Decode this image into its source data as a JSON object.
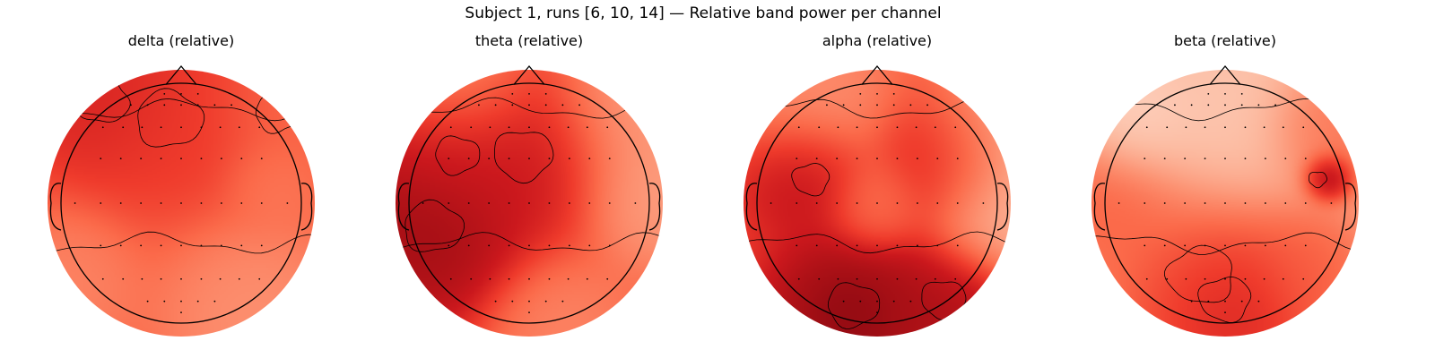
{
  "figure": {
    "title": "Subject 1, runs [6, 10, 14] — Relative band power per channel"
  },
  "chart_data": [
    {
      "type": "heatmap",
      "kind": "topomap",
      "title": "delta (relative)",
      "colormap": "Reds",
      "base_level": 0.55,
      "hotspots": [
        {
          "x": -0.65,
          "y": 0.85,
          "w": 0.35,
          "v": 0.75
        },
        {
          "x": -0.1,
          "y": 0.7,
          "w": 0.45,
          "v": 0.65
        },
        {
          "x": 0.8,
          "y": 0.75,
          "w": 0.3,
          "v": 0.5
        },
        {
          "x": 0.55,
          "y": -0.85,
          "w": 0.4,
          "v": 0.35
        },
        {
          "x": -0.85,
          "y": -0.6,
          "w": 0.3,
          "v": 0.4
        },
        {
          "x": 0.7,
          "y": 0.15,
          "w": 0.2,
          "v": 0.45
        }
      ]
    },
    {
      "type": "heatmap",
      "kind": "topomap",
      "title": "theta (relative)",
      "colormap": "Reds",
      "base_level": 0.55,
      "hotspots": [
        {
          "x": -0.8,
          "y": -0.2,
          "w": 0.4,
          "v": 0.95
        },
        {
          "x": -0.6,
          "y": 0.4,
          "w": 0.3,
          "v": 0.75
        },
        {
          "x": -0.05,
          "y": 0.4,
          "w": 0.4,
          "v": 0.78
        },
        {
          "x": 0.75,
          "y": 0.75,
          "w": 0.35,
          "v": 0.3
        },
        {
          "x": 0.95,
          "y": 0.05,
          "w": 0.3,
          "v": 0.3
        },
        {
          "x": -0.5,
          "y": 0.9,
          "w": 0.3,
          "v": 0.35
        },
        {
          "x": 0.25,
          "y": -0.95,
          "w": 0.3,
          "v": 0.4
        }
      ]
    },
    {
      "type": "heatmap",
      "kind": "topomap",
      "title": "alpha (relative)",
      "colormap": "Reds",
      "base_level": 0.6,
      "hotspots": [
        {
          "x": -0.2,
          "y": -0.85,
          "w": 0.35,
          "v": 0.98
        },
        {
          "x": 0.55,
          "y": -0.8,
          "w": 0.3,
          "v": 0.88
        },
        {
          "x": -0.55,
          "y": 0.2,
          "w": 0.25,
          "v": 0.82
        },
        {
          "x": 0.55,
          "y": 0.35,
          "w": 0.3,
          "v": 0.82
        },
        {
          "x": 0.0,
          "y": 0.0,
          "w": 0.2,
          "v": 0.45
        },
        {
          "x": 0.9,
          "y": 0.5,
          "w": 0.35,
          "v": 0.15
        },
        {
          "x": 0.95,
          "y": -0.1,
          "w": 0.3,
          "v": 0.2
        },
        {
          "x": -0.45,
          "y": 0.8,
          "w": 0.35,
          "v": 0.35
        }
      ]
    },
    {
      "type": "heatmap",
      "kind": "topomap",
      "title": "beta (relative)",
      "colormap": "Reds",
      "base_level": 0.3,
      "hotspots": [
        {
          "x": 0.77,
          "y": 0.2,
          "w": 0.1,
          "v": 1.0
        },
        {
          "x": 0.0,
          "y": -0.8,
          "w": 0.35,
          "v": 0.85
        },
        {
          "x": -0.2,
          "y": -0.6,
          "w": 0.45,
          "v": 0.55
        },
        {
          "x": -0.9,
          "y": 0.0,
          "w": 0.3,
          "v": 0.55
        },
        {
          "x": 0.75,
          "y": 0.55,
          "w": 0.25,
          "v": 0.5
        },
        {
          "x": 0.0,
          "y": 0.6,
          "w": 0.4,
          "v": 0.2
        },
        {
          "x": 0.6,
          "y": -0.5,
          "w": 0.25,
          "v": 0.55
        },
        {
          "x": -0.7,
          "y": 0.6,
          "w": 0.25,
          "v": 0.15
        }
      ]
    }
  ]
}
